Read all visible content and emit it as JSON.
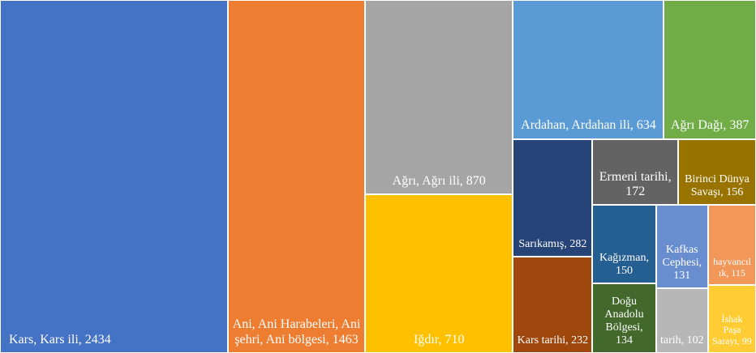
{
  "chart_data": {
    "type": "treemap",
    "values": [
      2434,
      1463,
      870,
      710,
      634,
      387,
      282,
      232,
      172,
      156,
      150,
      134,
      131,
      102,
      115,
      99
    ],
    "value_labels": [
      "Kars, Kars ili, 2434",
      "Ani, Ani Harabeleri, Ani şehri, Ani bölgesi, 1463",
      "Ağrı, Ağrı ili, 870",
      "Iğdır, 710",
      "Ardahan, Ardahan ili, 634",
      "Ağrı Dağı, 387",
      "Sarıkamış, 282",
      "Kars tarihi, 232",
      "Ermeni tarihi, 172",
      "Birinci Dünya Savaşı, 156",
      "Kağızman, 150",
      "Doğu Anadolu Bölgesi, 134",
      "Kafkas Cephesi, 131",
      "tarih, 102",
      "hayvancılık, 115",
      "İshak Paşa Sarayı, 99"
    ],
    "colors": [
      "#4472c4",
      "#ed7d31",
      "#a5a5a5",
      "#ffc000",
      "#5b9bd5",
      "#70ad47",
      "#264478",
      "#9e480e",
      "#636363",
      "#997300",
      "#255e91",
      "#43682b",
      "#698ed0",
      "#b7b7b7",
      "#f1975a",
      "#ffcd33"
    ]
  }
}
